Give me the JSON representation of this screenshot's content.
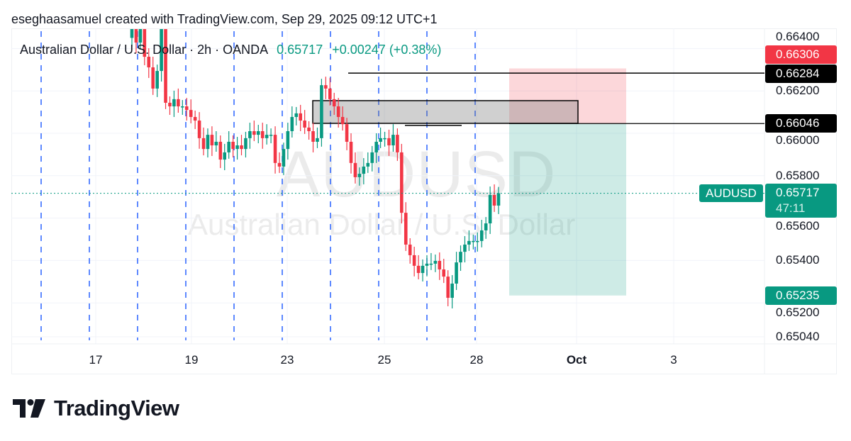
{
  "header": {
    "credit": "eseghaasamuel created with TradingView.com, Sep 29, 2025 09:12 UTC+1"
  },
  "legend": {
    "symbol_desc": "Australian Dollar / U.S. Dollar · 2h · OANDA",
    "last": "0.65717",
    "change": "+0.00247 (+0.38%)"
  },
  "watermark": {
    "ticker": "AUDUSD",
    "name": "Australian Dollar / U.S. Dollar"
  },
  "colors": {
    "up": "#089981",
    "down": "#f23645",
    "session": "#2962ff",
    "grid": "#f0f3fa"
  },
  "price_labels": {
    "stop": "0.66306",
    "high_line": "0.66284",
    "entry": "0.66046",
    "current": "0.65717",
    "countdown": "47:11",
    "target": "0.65235",
    "symbol_tag": "AUDUSD"
  },
  "footer": {
    "brand": "TradingView"
  },
  "chart_data": {
    "type": "candlestick",
    "title": "Australian Dollar / U.S. Dollar · 2h · OANDA",
    "interval": "2h",
    "ylim": [
      0.6496,
      0.6653
    ],
    "y_ticks": [
      "0.66400",
      "0.66200",
      "0.66000",
      "0.65800",
      "0.65600",
      "0.65400",
      "0.65200",
      "0.65040"
    ],
    "x_ticks": [
      {
        "label": "17",
        "day_index": 1
      },
      {
        "label": "19",
        "day_index": 3
      },
      {
        "label": "23",
        "day_index": 5
      },
      {
        "label": "25",
        "day_index": 7
      },
      {
        "label": "28",
        "day_index": 9
      },
      {
        "label": "Oct",
        "day_index": 11,
        "bold": true
      },
      {
        "label": "3",
        "day_index": 13
      }
    ],
    "first_open": 0.6645,
    "closes": [
      0.66495,
      0.66428,
      0.66528,
      0.66361,
      0.66311,
      0.66211,
      0.66294,
      0.66495,
      0.66144,
      0.66127,
      0.66161,
      0.66127,
      0.66127,
      0.6611,
      0.66077,
      0.6606,
      0.65977,
      0.65926,
      0.65993,
      0.65943,
      0.6596,
      0.65876,
      0.6591,
      0.6596,
      0.65926,
      0.65943,
      0.65926,
      0.65977,
      0.6601,
      0.65993,
      0.6601,
      0.65977,
      0.65993,
      0.65993,
      0.6586,
      0.65843,
      0.65926,
      0.6601,
      0.66077,
      0.66094,
      0.6606,
      0.66027,
      0.6601,
      0.6596,
      0.65977,
      0.66227,
      0.66211,
      0.66161,
      0.66127,
      0.66077,
      0.66043,
      0.6596,
      0.6586,
      0.65793,
      0.65809,
      0.65843,
      0.6586,
      0.6591,
      0.6596,
      0.65977,
      0.65977,
      0.65943,
      0.65993,
      0.6591,
      0.65625,
      0.65475,
      0.65425,
      0.65375,
      0.65341,
      0.65375,
      0.65385,
      0.65385,
      0.65398,
      0.65358,
      0.65324,
      0.65224,
      0.65291,
      0.65391,
      0.65441,
      0.65475,
      0.65492,
      0.65492,
      0.65492,
      0.65542,
      0.65575,
      0.65709,
      0.65659,
      0.65717
    ],
    "current_price": 0.65717,
    "drawings": {
      "zone": {
        "top": 0.66154,
        "bottom": 0.66047
      },
      "high_line": 0.66284,
      "minor_line": 0.66037,
      "short_position": {
        "stop": 0.66306,
        "entry": 0.66046,
        "target": 0.65235
      }
    }
  }
}
